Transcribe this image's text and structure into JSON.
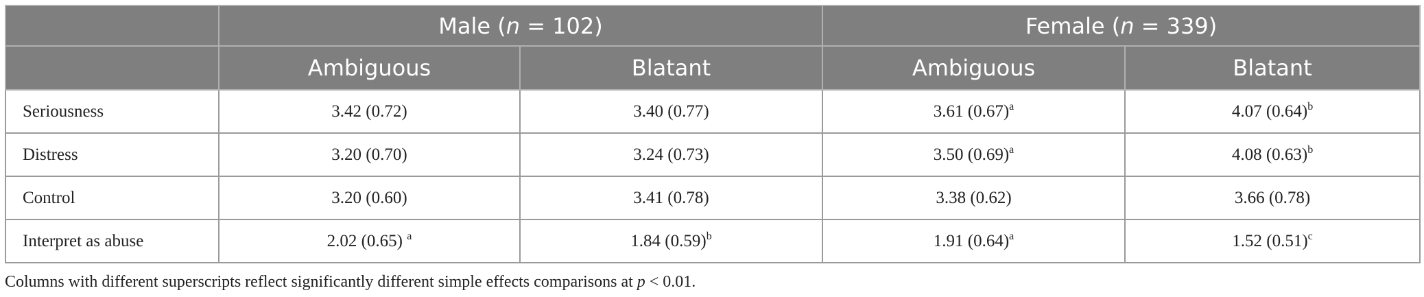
{
  "table": {
    "group_headers": [
      {
        "parts": [
          "Male (",
          "n",
          " = 102)"
        ]
      },
      {
        "parts": [
          "Female (",
          "n",
          " = 339)"
        ]
      }
    ],
    "sub_headers": [
      "Ambiguous",
      "Blatant",
      "Ambiguous",
      "Blatant"
    ],
    "rows": [
      {
        "label": "Seriousness",
        "cells": [
          {
            "text": "3.42 (0.72)"
          },
          {
            "text": "3.40 (0.77)"
          },
          {
            "text": "3.61 (0.67)",
            "sup": "a"
          },
          {
            "text": "4.07 (0.64)",
            "sup": "b"
          }
        ]
      },
      {
        "label": "Distress",
        "cells": [
          {
            "text": "3.20 (0.70)"
          },
          {
            "text": "3.24 (0.73)"
          },
          {
            "text": "3.50 (0.69)",
            "sup": "a"
          },
          {
            "text": "4.08 (0.63)",
            "sup": "b"
          }
        ]
      },
      {
        "label": "Control",
        "cells": [
          {
            "text": "3.20 (0.60)"
          },
          {
            "text": "3.41 (0.78)"
          },
          {
            "text": "3.38 (0.62)"
          },
          {
            "text": "3.66 (0.78)"
          }
        ]
      },
      {
        "label": "Interpret as abuse",
        "cells": [
          {
            "text": "2.02 (0.65) ",
            "sup": "a"
          },
          {
            "text": "1.84 (0.59)",
            "sup": "b"
          },
          {
            "text": "1.91 (0.64)",
            "sup": "a"
          },
          {
            "text": "1.52 (0.51)",
            "sup": "c"
          }
        ]
      }
    ]
  },
  "footnote": {
    "parts": [
      "Columns with different superscripts reflect significantly different simple effects comparisons at ",
      "p",
      " < 0.01."
    ]
  }
}
